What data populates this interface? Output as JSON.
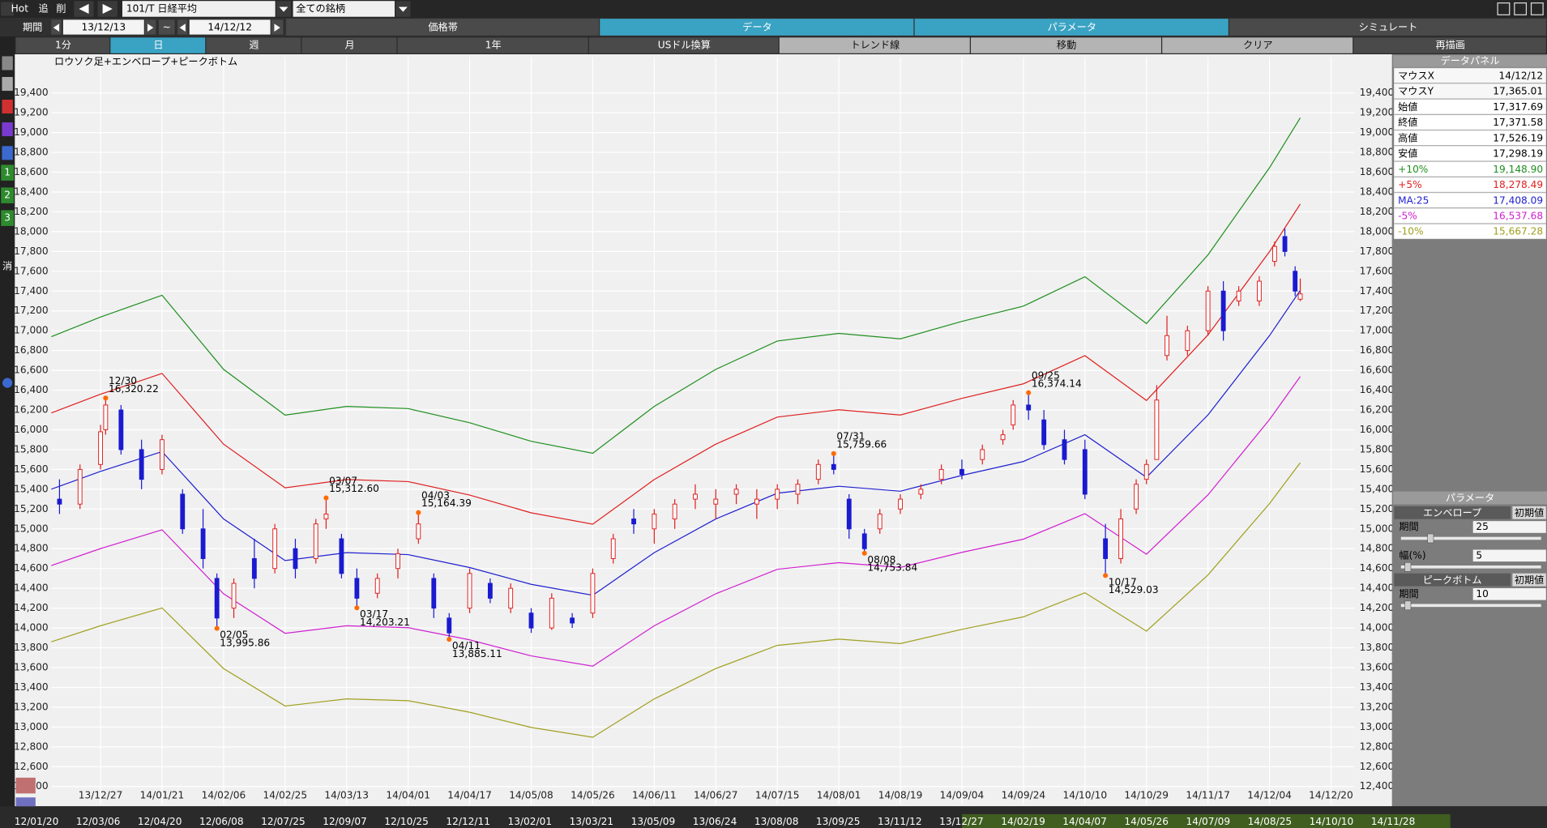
{
  "toolbar": {
    "hot": "Hot",
    "add": "追",
    "del": "削",
    "symbol": "101/T 日経平均",
    "group": "全ての銘柄"
  },
  "period": {
    "label": "期間",
    "from": "13/12/13",
    "sep": "~",
    "to": "14/12/12"
  },
  "tabs": [
    "価格帯",
    "データ",
    "パラメータ",
    "シミュレート"
  ],
  "buttons": [
    "1分",
    "日",
    "週",
    "月",
    "1年",
    "USドル換算",
    "トレンド線",
    "移動",
    "クリア",
    "再描画"
  ],
  "side_icons": [
    "1",
    "2",
    "3",
    "消"
  ],
  "chart_data": {
    "type": "candlestick",
    "title": "ロウソク足+エンベロープ+ピークボトム",
    "xlim": [
      -9.6,
      244.6
    ],
    "ylim": [
      12220,
      19760
    ],
    "grid": true,
    "xticks": [
      {
        "value": 0,
        "label": "13/12/27"
      },
      {
        "value": 12,
        "label": "14/01/21"
      },
      {
        "value": 24,
        "label": "14/02/06"
      },
      {
        "value": 36,
        "label": "14/02/25"
      },
      {
        "value": 48,
        "label": "14/03/13"
      },
      {
        "value": 60,
        "label": "14/04/01"
      },
      {
        "value": 72,
        "label": "14/04/17"
      },
      {
        "value": 84,
        "label": "14/05/08"
      },
      {
        "value": 96,
        "label": "14/05/26"
      },
      {
        "value": 108,
        "label": "14/06/11"
      },
      {
        "value": 120,
        "label": "14/06/27"
      },
      {
        "value": 132,
        "label": "14/07/15"
      },
      {
        "value": 144,
        "label": "14/08/01"
      },
      {
        "value": 156,
        "label": "14/08/19"
      },
      {
        "value": 168,
        "label": "14/09/04"
      },
      {
        "value": 180,
        "label": "14/09/24"
      },
      {
        "value": 192,
        "label": "14/10/10"
      },
      {
        "value": 204,
        "label": "14/10/29"
      },
      {
        "value": 216,
        "label": "14/11/17"
      },
      {
        "value": 228,
        "label": "14/12/04"
      },
      {
        "value": 240,
        "label": "14/12/20"
      }
    ],
    "yticks": [
      {
        "value": 12400,
        "label": "12,400"
      },
      {
        "value": 12600,
        "label": "12,600"
      },
      {
        "value": 12800,
        "label": "12,800"
      },
      {
        "value": 13000,
        "label": "13,000"
      },
      {
        "value": 13200,
        "label": "13,200"
      },
      {
        "value": 13400,
        "label": "13,400"
      },
      {
        "value": 13600,
        "label": "13,600"
      },
      {
        "value": 13800,
        "label": "13,800"
      },
      {
        "value": 14000,
        "label": "14,000"
      },
      {
        "value": 14200,
        "label": "14,200"
      },
      {
        "value": 14400,
        "label": "14,400"
      },
      {
        "value": 14600,
        "label": "14,600"
      },
      {
        "value": 14800,
        "label": "14,800"
      },
      {
        "value": 15000,
        "label": "15,000"
      },
      {
        "value": 15200,
        "label": "15,200"
      },
      {
        "value": 15400,
        "label": "15,400"
      },
      {
        "value": 15600,
        "label": "15,600"
      },
      {
        "value": 15800,
        "label": "15,800"
      },
      {
        "value": 16000,
        "label": "16,000"
      },
      {
        "value": 16200,
        "label": "16,200"
      },
      {
        "value": 16400,
        "label": "16,400"
      },
      {
        "value": 16600,
        "label": "16,600"
      },
      {
        "value": 16800,
        "label": "16,800"
      },
      {
        "value": 17000,
        "label": "17,000"
      },
      {
        "value": 17200,
        "label": "17,200"
      },
      {
        "value": 17400,
        "label": "17,400"
      },
      {
        "value": 17600,
        "label": "17,600"
      },
      {
        "value": 17800,
        "label": "17,800"
      },
      {
        "value": 18000,
        "label": "18,000"
      },
      {
        "value": 18200,
        "label": "18,200"
      },
      {
        "value": 18400,
        "label": "18,400"
      },
      {
        "value": 18600,
        "label": "18,600"
      },
      {
        "value": 18800,
        "label": "18,800"
      },
      {
        "value": 19000,
        "label": "19,000"
      },
      {
        "value": 19200,
        "label": "19,200"
      },
      {
        "value": 19400,
        "label": "19,400"
      }
    ],
    "up_color": "#e02020",
    "down_color": "#1a1ad0",
    "candles": [
      {
        "x": -8,
        "open": 15300,
        "high": 15500,
        "low": 15150,
        "close": 15250
      },
      {
        "x": -4,
        "open": 15250,
        "high": 15650,
        "low": 15200,
        "close": 15600
      },
      {
        "x": 0,
        "open": 15650,
        "high": 16050,
        "low": 15600,
        "close": 15980
      },
      {
        "x": 1,
        "open": 16000,
        "high": 16320.22,
        "low": 15950,
        "close": 16250
      },
      {
        "x": 4,
        "open": 16200,
        "high": 16250,
        "low": 15750,
        "close": 15800
      },
      {
        "x": 8,
        "open": 15800,
        "high": 15900,
        "low": 15400,
        "close": 15500
      },
      {
        "x": 12,
        "open": 15600,
        "high": 15950,
        "low": 15550,
        "close": 15900
      },
      {
        "x": 16,
        "open": 15350,
        "high": 15400,
        "low": 14950,
        "close": 15000
      },
      {
        "x": 20,
        "open": 15000,
        "high": 15200,
        "low": 14600,
        "close": 14700
      },
      {
        "x": 22.7,
        "open": 14500,
        "high": 14550,
        "low": 13995.86,
        "close": 14100
      },
      {
        "x": 26,
        "open": 14200,
        "high": 14500,
        "low": 14100,
        "close": 14450
      },
      {
        "x": 30,
        "open": 14700,
        "high": 14900,
        "low": 14400,
        "close": 14500
      },
      {
        "x": 34,
        "open": 14600,
        "high": 15050,
        "low": 14550,
        "close": 15000
      },
      {
        "x": 38,
        "open": 14800,
        "high": 14900,
        "low": 14500,
        "close": 14600
      },
      {
        "x": 42,
        "open": 14700,
        "high": 15100,
        "low": 14650,
        "close": 15050
      },
      {
        "x": 44,
        "open": 15100,
        "high": 15312.6,
        "low": 15000,
        "close": 15150
      },
      {
        "x": 47,
        "open": 14900,
        "high": 14950,
        "low": 14500,
        "close": 14550
      },
      {
        "x": 50,
        "open": 14500,
        "high": 14600,
        "low": 14203.21,
        "close": 14300
      },
      {
        "x": 54,
        "open": 14350,
        "high": 14550,
        "low": 14300,
        "close": 14500
      },
      {
        "x": 58,
        "open": 14600,
        "high": 14800,
        "low": 14500,
        "close": 14750
      },
      {
        "x": 62,
        "open": 14900,
        "high": 15164.39,
        "low": 14850,
        "close": 15050
      },
      {
        "x": 65,
        "open": 14500,
        "high": 14550,
        "low": 14100,
        "close": 14200
      },
      {
        "x": 68,
        "open": 14100,
        "high": 14150,
        "low": 13885.11,
        "close": 13950
      },
      {
        "x": 72,
        "open": 14200,
        "high": 14600,
        "low": 14150,
        "close": 14550
      },
      {
        "x": 76,
        "open": 14450,
        "high": 14500,
        "low": 14250,
        "close": 14300
      },
      {
        "x": 80,
        "open": 14200,
        "high": 14450,
        "low": 14150,
        "close": 14400
      },
      {
        "x": 84,
        "open": 14150,
        "high": 14200,
        "low": 13950,
        "close": 14000
      },
      {
        "x": 88,
        "open": 14000,
        "high": 14350,
        "low": 13980,
        "close": 14300
      },
      {
        "x": 92,
        "open": 14100,
        "high": 14150,
        "low": 14000,
        "close": 14050
      },
      {
        "x": 96,
        "open": 14150,
        "high": 14600,
        "low": 14100,
        "close": 14550
      },
      {
        "x": 100,
        "open": 14700,
        "high": 14950,
        "low": 14650,
        "close": 14900
      },
      {
        "x": 104,
        "open": 15100,
        "high": 15200,
        "low": 14950,
        "close": 15050
      },
      {
        "x": 108,
        "open": 15000,
        "high": 15200,
        "low": 14850,
        "close": 15150
      },
      {
        "x": 112,
        "open": 15100,
        "high": 15300,
        "low": 15000,
        "close": 15250
      },
      {
        "x": 116,
        "open": 15300,
        "high": 15450,
        "low": 15200,
        "close": 15350
      },
      {
        "x": 120,
        "open": 15250,
        "high": 15400,
        "low": 15100,
        "close": 15300
      },
      {
        "x": 124,
        "open": 15350,
        "high": 15450,
        "low": 15250,
        "close": 15400
      },
      {
        "x": 128,
        "open": 15250,
        "high": 15400,
        "low": 15100,
        "close": 15300
      },
      {
        "x": 132,
        "open": 15300,
        "high": 15450,
        "low": 15200,
        "close": 15400
      },
      {
        "x": 136,
        "open": 15350,
        "high": 15500,
        "low": 15250,
        "close": 15450
      },
      {
        "x": 140,
        "open": 15500,
        "high": 15700,
        "low": 15450,
        "close": 15650
      },
      {
        "x": 143,
        "open": 15650,
        "high": 15759.66,
        "low": 15550,
        "close": 15600
      },
      {
        "x": 146,
        "open": 15300,
        "high": 15350,
        "low": 14900,
        "close": 15000
      },
      {
        "x": 149,
        "open": 14950,
        "high": 15000,
        "low": 14753.84,
        "close": 14800
      },
      {
        "x": 152,
        "open": 15000,
        "high": 15200,
        "low": 14950,
        "close": 15150
      },
      {
        "x": 156,
        "open": 15200,
        "high": 15350,
        "low": 15150,
        "close": 15300
      },
      {
        "x": 160,
        "open": 15350,
        "high": 15450,
        "low": 15300,
        "close": 15400
      },
      {
        "x": 164,
        "open": 15500,
        "high": 15650,
        "low": 15450,
        "close": 15600
      },
      {
        "x": 168,
        "open": 15600,
        "high": 15700,
        "low": 15500,
        "close": 15550
      },
      {
        "x": 172,
        "open": 15700,
        "high": 15850,
        "low": 15650,
        "close": 15800
      },
      {
        "x": 176,
        "open": 15900,
        "high": 16000,
        "low": 15850,
        "close": 15950
      },
      {
        "x": 178,
        "open": 16050,
        "high": 16300,
        "low": 16000,
        "close": 16250
      },
      {
        "x": 181,
        "open": 16250,
        "high": 16374.14,
        "low": 16100,
        "close": 16200
      },
      {
        "x": 184,
        "open": 16100,
        "high": 16200,
        "low": 15800,
        "close": 15850
      },
      {
        "x": 188,
        "open": 15900,
        "high": 16000,
        "low": 15650,
        "close": 15700
      },
      {
        "x": 192,
        "open": 15800,
        "high": 15900,
        "low": 15300,
        "close": 15350
      },
      {
        "x": 196,
        "open": 14900,
        "high": 15050,
        "low": 14529.03,
        "close": 14700
      },
      {
        "x": 199,
        "open": 14700,
        "high": 15200,
        "low": 14650,
        "close": 15100
      },
      {
        "x": 202,
        "open": 15200,
        "high": 15500,
        "low": 15150,
        "close": 15450
      },
      {
        "x": 204,
        "open": 15500,
        "high": 15700,
        "low": 15450,
        "close": 15650
      },
      {
        "x": 206,
        "open": 15700,
        "high": 16450,
        "low": 15700,
        "close": 16300
      },
      {
        "x": 208,
        "open": 16750,
        "high": 17150,
        "low": 16700,
        "close": 16950
      },
      {
        "x": 212,
        "open": 16800,
        "high": 17050,
        "low": 16750,
        "close": 17000
      },
      {
        "x": 216,
        "open": 17000,
        "high": 17450,
        "low": 16950,
        "close": 17400
      },
      {
        "x": 219,
        "open": 17400,
        "high": 17500,
        "low": 16900,
        "close": 17000
      },
      {
        "x": 222,
        "open": 17300,
        "high": 17450,
        "low": 17250,
        "close": 17400
      },
      {
        "x": 226,
        "open": 17300,
        "high": 17550,
        "low": 17250,
        "close": 17500
      },
      {
        "x": 229,
        "open": 17700,
        "high": 17900,
        "low": 17650,
        "close": 17850
      },
      {
        "x": 231,
        "open": 17950,
        "high": 18030,
        "low": 17750,
        "close": 17800
      },
      {
        "x": 233,
        "open": 17600,
        "high": 17650,
        "low": 17350,
        "close": 17400
      },
      {
        "x": 234,
        "open": 17317.69,
        "high": 17526.19,
        "low": 17298.19,
        "close": 17371.58
      }
    ],
    "series_x": [
      -9.6,
      0,
      12,
      24,
      36,
      48,
      60,
      72,
      84,
      96,
      108,
      120,
      132,
      144,
      156,
      168,
      180,
      192,
      204,
      216,
      228,
      234
    ],
    "series": [
      {
        "name": "+10%",
        "color": "#1f8f1f",
        "values": [
          16940,
          17138,
          17358,
          16610,
          16148,
          16236,
          16214,
          16071,
          15884,
          15763,
          16236,
          16610,
          16896,
          16973,
          16918,
          17094,
          17248,
          17545,
          17072,
          17765,
          18645,
          19148.9
        ]
      },
      {
        "name": "+5%",
        "color": "#e02020",
        "values": [
          16170,
          16359,
          16569,
          15855,
          15414,
          15498,
          15477,
          15341,
          15162,
          15047,
          15498,
          15855,
          16128,
          16202,
          16149,
          16317,
          16464,
          16748,
          16296,
          16958,
          17798,
          18278.49
        ]
      },
      {
        "name": "MA:25",
        "color": "#2020d0",
        "values": [
          15400,
          15580,
          15780,
          15100,
          14680,
          14760,
          14740,
          14610,
          14440,
          14330,
          14760,
          15100,
          15360,
          15430,
          15380,
          15540,
          15680,
          15950,
          15520,
          16150,
          16950,
          17408.09
        ]
      },
      {
        "name": "-5%",
        "color": "#d020d0",
        "values": [
          14630,
          14801,
          14991,
          14345,
          13946,
          14022,
          14003,
          13880,
          13718,
          13614,
          14022,
          14345,
          14592,
          14659,
          14611,
          14763,
          14896,
          15153,
          14744,
          15343,
          16103,
          16537.68
        ]
      },
      {
        "name": "-10%",
        "color": "#a0a020",
        "values": [
          13860,
          14022,
          14202,
          13590,
          13212,
          13284,
          13266,
          13149,
          12996,
          12897,
          13284,
          13590,
          13824,
          13887,
          13842,
          13986,
          14112,
          14355,
          13968,
          14535,
          15255,
          15667.28
        ]
      }
    ],
    "marker_color": "#ff6a00",
    "annotations": [
      {
        "x": 1,
        "value": 16320.22,
        "date": "12/30",
        "label": "16,320.22"
      },
      {
        "x": 22.7,
        "value": 13995.86,
        "date": "02/05",
        "label": "13,995.86"
      },
      {
        "x": 44,
        "value": 15312.6,
        "date": "03/07",
        "label": "15,312.60"
      },
      {
        "x": 50,
        "value": 14203.21,
        "date": "03/17",
        "label": "14,203.21"
      },
      {
        "x": 62,
        "value": 15164.39,
        "date": "04/03",
        "label": "15,164.39"
      },
      {
        "x": 68,
        "value": 13885.11,
        "date": "04/11",
        "label": "13,885.11"
      },
      {
        "x": 143,
        "value": 15759.66,
        "date": "07/31",
        "label": "15,759.66"
      },
      {
        "x": 149,
        "value": 14753.84,
        "date": "08/08",
        "label": "14,753.84"
      },
      {
        "x": 181,
        "value": 16374.14,
        "date": "09/25",
        "label": "16,374.14"
      },
      {
        "x": 196,
        "value": 14529.03,
        "date": "10/17",
        "label": "14,529.03"
      }
    ]
  },
  "data_panel": {
    "title": "データパネル",
    "rows": [
      {
        "label": "マウスX",
        "value": "14/12/12",
        "color": "#000000"
      },
      {
        "label": "マウスY",
        "value": "17,365.01",
        "color": "#000000"
      },
      {
        "label": "始値",
        "value": "17,317.69",
        "color": "#000000"
      },
      {
        "label": "終値",
        "value": "17,371.58",
        "color": "#000000"
      },
      {
        "label": "高値",
        "value": "17,526.19",
        "color": "#000000"
      },
      {
        "label": "安値",
        "value": "17,298.19",
        "color": "#000000"
      },
      {
        "label": "+10%",
        "value": "19,148.90",
        "color": "#1f8f1f"
      },
      {
        "label": "+5%",
        "value": "18,278.49",
        "color": "#e02020"
      },
      {
        "label": "MA:25",
        "value": "17,408.09",
        "color": "#2020d0"
      },
      {
        "label": "-5%",
        "value": "16,537.68",
        "color": "#d020d0"
      },
      {
        "label": "-10%",
        "value": "15,667.28",
        "color": "#a0a020"
      }
    ]
  },
  "parameters": {
    "title": "パラメータ",
    "sections": [
      {
        "name": "エンベロープ",
        "reset": "初期値",
        "fields": [
          {
            "label": "期間",
            "value": "25"
          },
          {
            "label": "幅(%)",
            "value": "5"
          }
        ]
      },
      {
        "name": "ピークボトム",
        "reset": "初期値",
        "fields": [
          {
            "label": "期間",
            "value": "10"
          }
        ]
      }
    ]
  },
  "timeline": [
    "12/01/20",
    "12/03/06",
    "12/04/20",
    "12/06/08",
    "12/07/25",
    "12/09/07",
    "12/10/25",
    "12/12/11",
    "13/02/01",
    "13/03/21",
    "13/05/09",
    "13/06/24",
    "13/08/08",
    "13/09/25",
    "13/11/12",
    "13/12/27",
    "14/02/19",
    "14/04/07",
    "14/05/26",
    "14/07/09",
    "14/08/25",
    "14/10/10",
    "14/11/28"
  ]
}
